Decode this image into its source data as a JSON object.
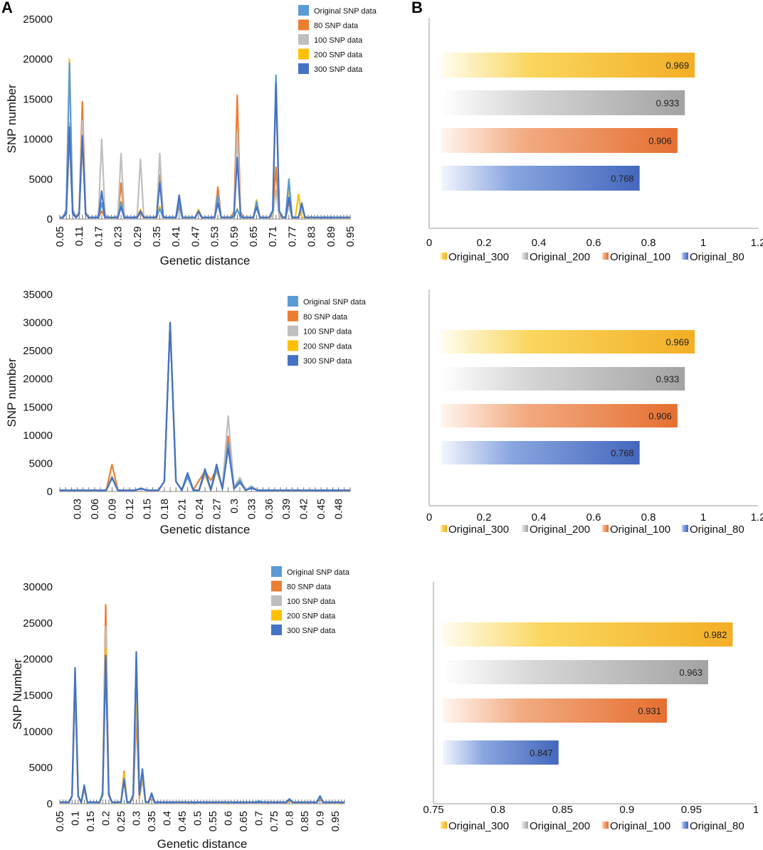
{
  "panel_labels": {
    "a": "A",
    "b": "B"
  },
  "colors": {
    "Original SNP data": "#5b9bd5",
    "80 SNP data": "#ed7d31",
    "100 SNP data": "#bfbfbf",
    "200 SNP data": "#ffc000",
    "300 SNP data": "#4472c4",
    "Original_300": "#f4b533",
    "Original_200": "#a6a6a6",
    "Original_100": "#e9773a",
    "Original_80": "#4a70c2"
  },
  "chart_data": [
    {
      "type": "line",
      "title": "",
      "xlabel": "Genetic distance",
      "ylabel": "SNP number",
      "ylim": [
        0,
        25000
      ],
      "yticks": [
        "0",
        "5000",
        "10000",
        "15000",
        "20000",
        "25000"
      ],
      "x_min": 0.05,
      "x_step": 0.01,
      "x_count": 91,
      "xtick_labels": [
        "0.05",
        "0.11",
        "0.17",
        "0.23",
        "0.29",
        "0.35",
        "0.41",
        "0.47",
        "0.53",
        "0.59",
        "0.65",
        "0.71",
        "0.77",
        "0.83",
        "0.89",
        "0.95"
      ],
      "legend": [
        "Original SNP data",
        "80 SNP data",
        "100 SNP data",
        "200 SNP data",
        "300 SNP data"
      ],
      "series": [
        {
          "name": "Original SNP data",
          "peaks": [
            [
              0.08,
              19500
            ],
            [
              0.12,
              10500
            ],
            [
              0.18,
              2000
            ],
            [
              0.24,
              2100
            ],
            [
              0.3,
              1000
            ],
            [
              0.36,
              1300
            ],
            [
              0.42,
              2100
            ],
            [
              0.48,
              1000
            ],
            [
              0.54,
              3000
            ],
            [
              0.6,
              1200
            ],
            [
              0.66,
              2200
            ],
            [
              0.72,
              18000
            ],
            [
              0.76,
              5000
            ],
            [
              0.8,
              1800
            ]
          ]
        },
        {
          "name": "80 SNP data",
          "peaks": [
            [
              0.08,
              10500
            ],
            [
              0.12,
              14700
            ],
            [
              0.18,
              1000
            ],
            [
              0.24,
              4500
            ],
            [
              0.3,
              800
            ],
            [
              0.36,
              5500
            ],
            [
              0.42,
              1500
            ],
            [
              0.48,
              900
            ],
            [
              0.54,
              4000
            ],
            [
              0.6,
              15500
            ],
            [
              0.66,
              2200
            ],
            [
              0.72,
              6500
            ],
            [
              0.76,
              2000
            ],
            [
              0.8,
              1500
            ]
          ]
        },
        {
          "name": "100 SNP data",
          "peaks": [
            [
              0.08,
              12000
            ],
            [
              0.12,
              12300
            ],
            [
              0.18,
              10000
            ],
            [
              0.24,
              8200
            ],
            [
              0.3,
              7500
            ],
            [
              0.36,
              8200
            ],
            [
              0.42,
              1000
            ],
            [
              0.48,
              1200
            ],
            [
              0.54,
              3000
            ],
            [
              0.6,
              11000
            ],
            [
              0.66,
              1500
            ],
            [
              0.72,
              3600
            ],
            [
              0.76,
              1500
            ],
            [
              0.8,
              1200
            ]
          ]
        },
        {
          "name": "200 SNP data",
          "peaks": [
            [
              0.08,
              20000
            ],
            [
              0.12,
              10000
            ],
            [
              0.18,
              2000
            ],
            [
              0.24,
              2200
            ],
            [
              0.3,
              1200
            ],
            [
              0.36,
              1600
            ],
            [
              0.42,
              2500
            ],
            [
              0.48,
              1200
            ],
            [
              0.54,
              3000
            ],
            [
              0.6,
              1300
            ],
            [
              0.66,
              2400
            ],
            [
              0.72,
              16000
            ],
            [
              0.76,
              4000
            ],
            [
              0.79,
              3100
            ]
          ]
        },
        {
          "name": "300 SNP data",
          "peaks": [
            [
              0.08,
              11500
            ],
            [
              0.12,
              10300
            ],
            [
              0.18,
              3500
            ],
            [
              0.24,
              1500
            ],
            [
              0.3,
              1000
            ],
            [
              0.36,
              4600
            ],
            [
              0.42,
              3000
            ],
            [
              0.48,
              1000
            ],
            [
              0.54,
              2000
            ],
            [
              0.6,
              7700
            ],
            [
              0.66,
              1500
            ],
            [
              0.72,
              17000
            ],
            [
              0.76,
              2700
            ],
            [
              0.8,
              2000
            ]
          ]
        }
      ]
    },
    {
      "type": "line",
      "title": "",
      "xlabel": "Genetic distance",
      "ylabel": "SNP number",
      "ylim": [
        0,
        35000
      ],
      "yticks": [
        "0",
        "5000",
        "10000",
        "15000",
        "20000",
        "25000",
        "30000",
        "35000"
      ],
      "x_min": 0.0,
      "x_step": 0.01,
      "x_count": 51,
      "xtick_labels": [
        "0.03",
        "0.06",
        "0.09",
        "0.12",
        "0.15",
        "0.18",
        "0.21",
        "0.24",
        "0.27",
        "0.3",
        "0.33",
        "0.36",
        "0.39",
        "0.42",
        "0.45",
        "0.48"
      ],
      "legend": [
        "Original SNP data",
        "80 SNP data",
        "100 SNP data",
        "200 SNP data",
        "300 SNP data"
      ],
      "series": [
        {
          "name": "Original SNP data",
          "peaks": [
            [
              0.09,
              2500
            ],
            [
              0.14,
              600
            ],
            [
              0.19,
              30000
            ],
            [
              0.22,
              2600
            ],
            [
              0.25,
              3500
            ],
            [
              0.27,
              4200
            ],
            [
              0.29,
              8500
            ],
            [
              0.31,
              2000
            ],
            [
              0.33,
              800
            ]
          ]
        },
        {
          "name": "80 SNP data",
          "peaks": [
            [
              0.09,
              4800
            ],
            [
              0.14,
              600
            ],
            [
              0.19,
              30000
            ],
            [
              0.22,
              3200
            ],
            [
              0.24,
              2000
            ],
            [
              0.25,
              3600
            ],
            [
              0.26,
              2000
            ],
            [
              0.27,
              4000
            ],
            [
              0.29,
              9800
            ],
            [
              0.31,
              1800
            ],
            [
              0.33,
              900
            ]
          ]
        },
        {
          "name": "100 SNP data",
          "peaks": [
            [
              0.09,
              2700
            ],
            [
              0.14,
              500
            ],
            [
              0.19,
              30000
            ],
            [
              0.22,
              2800
            ],
            [
              0.25,
              3000
            ],
            [
              0.27,
              3600
            ],
            [
              0.29,
              13400
            ],
            [
              0.31,
              2500
            ],
            [
              0.33,
              1000
            ]
          ]
        },
        {
          "name": "200 SNP data",
          "peaks": [
            [
              0.09,
              2600
            ],
            [
              0.14,
              500
            ],
            [
              0.19,
              30000
            ],
            [
              0.22,
              2600
            ],
            [
              0.25,
              3200
            ],
            [
              0.27,
              3900
            ],
            [
              0.29,
              8200
            ],
            [
              0.31,
              2000
            ],
            [
              0.33,
              800
            ]
          ]
        },
        {
          "name": "300 SNP data",
          "peaks": [
            [
              0.09,
              2400
            ],
            [
              0.14,
              500
            ],
            [
              0.19,
              30000
            ],
            [
              0.22,
              3300
            ],
            [
              0.25,
              4000
            ],
            [
              0.27,
              4800
            ],
            [
              0.29,
              7700
            ],
            [
              0.31,
              1600
            ],
            [
              0.33,
              600
            ]
          ]
        }
      ]
    },
    {
      "type": "line",
      "title": "",
      "xlabel": "Genetic distance",
      "ylabel": "SNP Number",
      "ylim": [
        0,
        30000
      ],
      "yticks": [
        "0",
        "5000",
        "10000",
        "15000",
        "20000",
        "25000",
        "30000"
      ],
      "x_min": 0.05,
      "x_step": 0.01,
      "x_count": 94,
      "xtick_labels": [
        "0.05",
        "0.1",
        "0.15",
        "0.2",
        "0.25",
        "0.3",
        "0.35",
        "0.4",
        "0.45",
        "0.5",
        "0.55",
        "0.6",
        "0.65",
        "0.7",
        "0.75",
        "0.8",
        "0.85",
        "0.9",
        "0.95"
      ],
      "legend": [
        "Original SNP data",
        "80 SNP data",
        "100 SNP data",
        "200 SNP data",
        "300 SNP data"
      ],
      "series": [
        {
          "name": "Original SNP data",
          "peaks": [
            [
              0.1,
              18000
            ],
            [
              0.13,
              2600
            ],
            [
              0.2,
              20000
            ],
            [
              0.26,
              3500
            ],
            [
              0.3,
              20000
            ],
            [
              0.32,
              4500
            ],
            [
              0.35,
              1500
            ],
            [
              0.7,
              400
            ],
            [
              0.8,
              700
            ],
            [
              0.9,
              1100
            ]
          ]
        },
        {
          "name": "80 SNP data",
          "peaks": [
            [
              0.1,
              16000
            ],
            [
              0.13,
              2000
            ],
            [
              0.2,
              27500
            ],
            [
              0.26,
              4500
            ],
            [
              0.3,
              12000
            ],
            [
              0.32,
              3500
            ],
            [
              0.35,
              800
            ],
            [
              0.8,
              400
            ],
            [
              0.9,
              600
            ]
          ]
        },
        {
          "name": "100 SNP data",
          "peaks": [
            [
              0.1,
              17000
            ],
            [
              0.13,
              2200
            ],
            [
              0.2,
              24500
            ],
            [
              0.26,
              4000
            ],
            [
              0.3,
              15000
            ],
            [
              0.32,
              3700
            ],
            [
              0.35,
              1000
            ],
            [
              0.8,
              500
            ],
            [
              0.9,
              800
            ]
          ]
        },
        {
          "name": "200 SNP data",
          "peaks": [
            [
              0.1,
              17500
            ],
            [
              0.13,
              2300
            ],
            [
              0.2,
              21500
            ],
            [
              0.26,
              4200
            ],
            [
              0.3,
              17000
            ],
            [
              0.32,
              4000
            ],
            [
              0.35,
              1200
            ],
            [
              0.8,
              500
            ],
            [
              0.9,
              900
            ]
          ]
        },
        {
          "name": "300 SNP data",
          "peaks": [
            [
              0.1,
              18800
            ],
            [
              0.13,
              2500
            ],
            [
              0.2,
              20500
            ],
            [
              0.26,
              3200
            ],
            [
              0.3,
              21000
            ],
            [
              0.32,
              4800
            ],
            [
              0.35,
              1400
            ],
            [
              0.8,
              600
            ],
            [
              0.9,
              1000
            ]
          ]
        }
      ]
    },
    {
      "type": "bar",
      "orientation": "horizontal",
      "categories": [
        "Original_300",
        "Original_200",
        "Original_100",
        "Original_80"
      ],
      "values": [
        0.969,
        0.933,
        0.906,
        0.768
      ],
      "value_labels": [
        "0.969",
        "0.933",
        "0.906",
        "0.768"
      ],
      "xlim": [
        0,
        1.2
      ],
      "xtick_labels": [
        "0",
        "0.2",
        "0.4",
        "0.6",
        "0.8",
        "1",
        "1.2"
      ],
      "legend": [
        "Original_300",
        "Original_200",
        "Original_100",
        "Original_80"
      ]
    },
    {
      "type": "bar",
      "orientation": "horizontal",
      "categories": [
        "Original_300",
        "Original_200",
        "Original_100",
        "Original_80"
      ],
      "values": [
        0.969,
        0.933,
        0.906,
        0.768
      ],
      "value_labels": [
        "0.969",
        "0.933",
        "0.906",
        "0.768"
      ],
      "xlim": [
        0,
        1.2
      ],
      "xtick_labels": [
        "0",
        "0.2",
        "0.4",
        "0.6",
        "0.8",
        "1",
        "1.2"
      ],
      "legend": [
        "Original_300",
        "Original_200",
        "Original_100",
        "Original_80"
      ]
    },
    {
      "type": "bar",
      "orientation": "horizontal",
      "categories": [
        "Original_300",
        "Original_200",
        "Original_100",
        "Original_80"
      ],
      "values": [
        0.982,
        0.963,
        0.931,
        0.847
      ],
      "value_labels": [
        "0.982",
        "0.963",
        "0.931",
        "0.847"
      ],
      "xlim": [
        0.75,
        1
      ],
      "xtick_labels": [
        "0.75",
        "0.8",
        "0.85",
        "0.9",
        "0.95",
        "1"
      ],
      "legend": [
        "Original_300",
        "Original_200",
        "Original_100",
        "Original_80"
      ]
    }
  ]
}
